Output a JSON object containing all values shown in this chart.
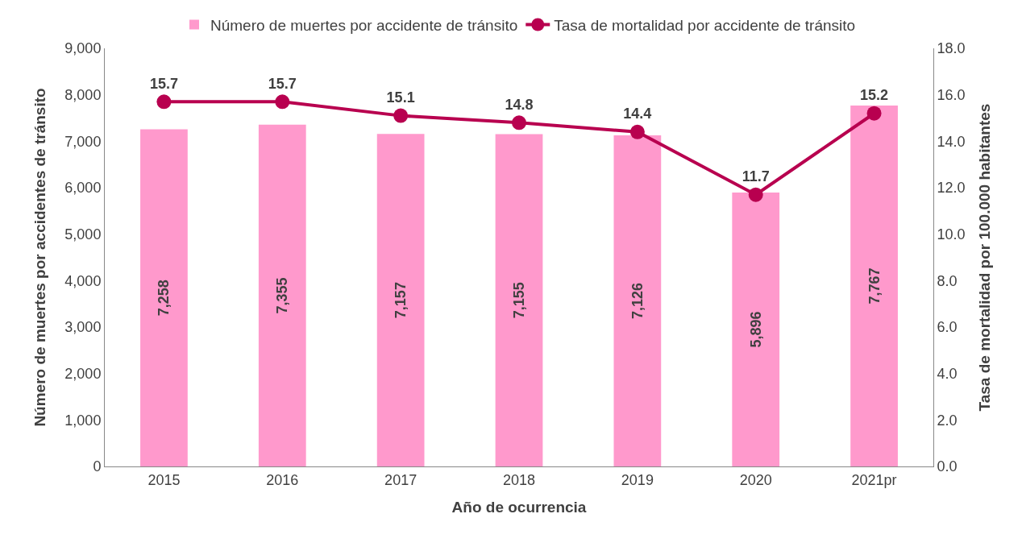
{
  "chart_data": {
    "type": "bar",
    "xlabel": "Año de ocurrencia",
    "ylabel": "Número de muertes por accidentes de tránsito",
    "y2label": "Tasa de mortalidad por 100.000 habitantes",
    "categories": [
      "2015",
      "2016",
      "2017",
      "2018",
      "2019",
      "2020",
      "2021pr"
    ],
    "series": [
      {
        "name": "Número de muertes por accidente de tránsito",
        "color": "#ff99cc",
        "values": [
          7258,
          7355,
          7157,
          7155,
          7126,
          5896,
          7767
        ],
        "value_labels": [
          "7,258",
          "7,355",
          "7,157",
          "7,155",
          "7,126",
          "5,896",
          "7,767"
        ]
      },
      {
        "name": "Tasa de mortalidad por accidente de tránsito",
        "type": "line",
        "axis": "y2",
        "color": "#b8004f",
        "marker": "circle",
        "line_style": "solid",
        "values": [
          15.7,
          15.7,
          15.1,
          14.8,
          14.4,
          11.7,
          15.2
        ],
        "value_labels": [
          "15.7",
          "15.7",
          "15.1",
          "14.8",
          "14.4",
          "11.7",
          "15.2"
        ]
      }
    ],
    "ylim": [
      0,
      9000
    ],
    "yticks": [
      0,
      {
        "value": 1000,
        "label": "1,000"
      },
      {
        "value": 2000,
        "label": "2,000"
      },
      {
        "value": 3000,
        "label": "3,000"
      },
      {
        "value": 4000,
        "label": "4,000"
      },
      {
        "value": 5000,
        "label": "5,000"
      },
      {
        "value": 6000,
        "label": "6,000"
      },
      {
        "value": 7000,
        "label": "7,000"
      },
      {
        "value": 8000,
        "label": "8,000"
      },
      {
        "value": 9000,
        "label": "9,000"
      }
    ],
    "y2lim": [
      0,
      18
    ],
    "y2ticks": [
      {
        "value": 0,
        "label": "0.0"
      },
      {
        "value": 2,
        "label": "2.0"
      },
      {
        "value": 4,
        "label": "4.0"
      },
      {
        "value": 6,
        "label": "6.0"
      },
      {
        "value": 8,
        "label": "8.0"
      },
      {
        "value": 10,
        "label": "10.0"
      },
      {
        "value": 12,
        "label": "12.0"
      },
      {
        "value": 14,
        "label": "14.0"
      },
      {
        "value": 16,
        "label": "16.0"
      },
      {
        "value": 18,
        "label": "18.0"
      }
    ],
    "grid": false,
    "legend": "top"
  }
}
